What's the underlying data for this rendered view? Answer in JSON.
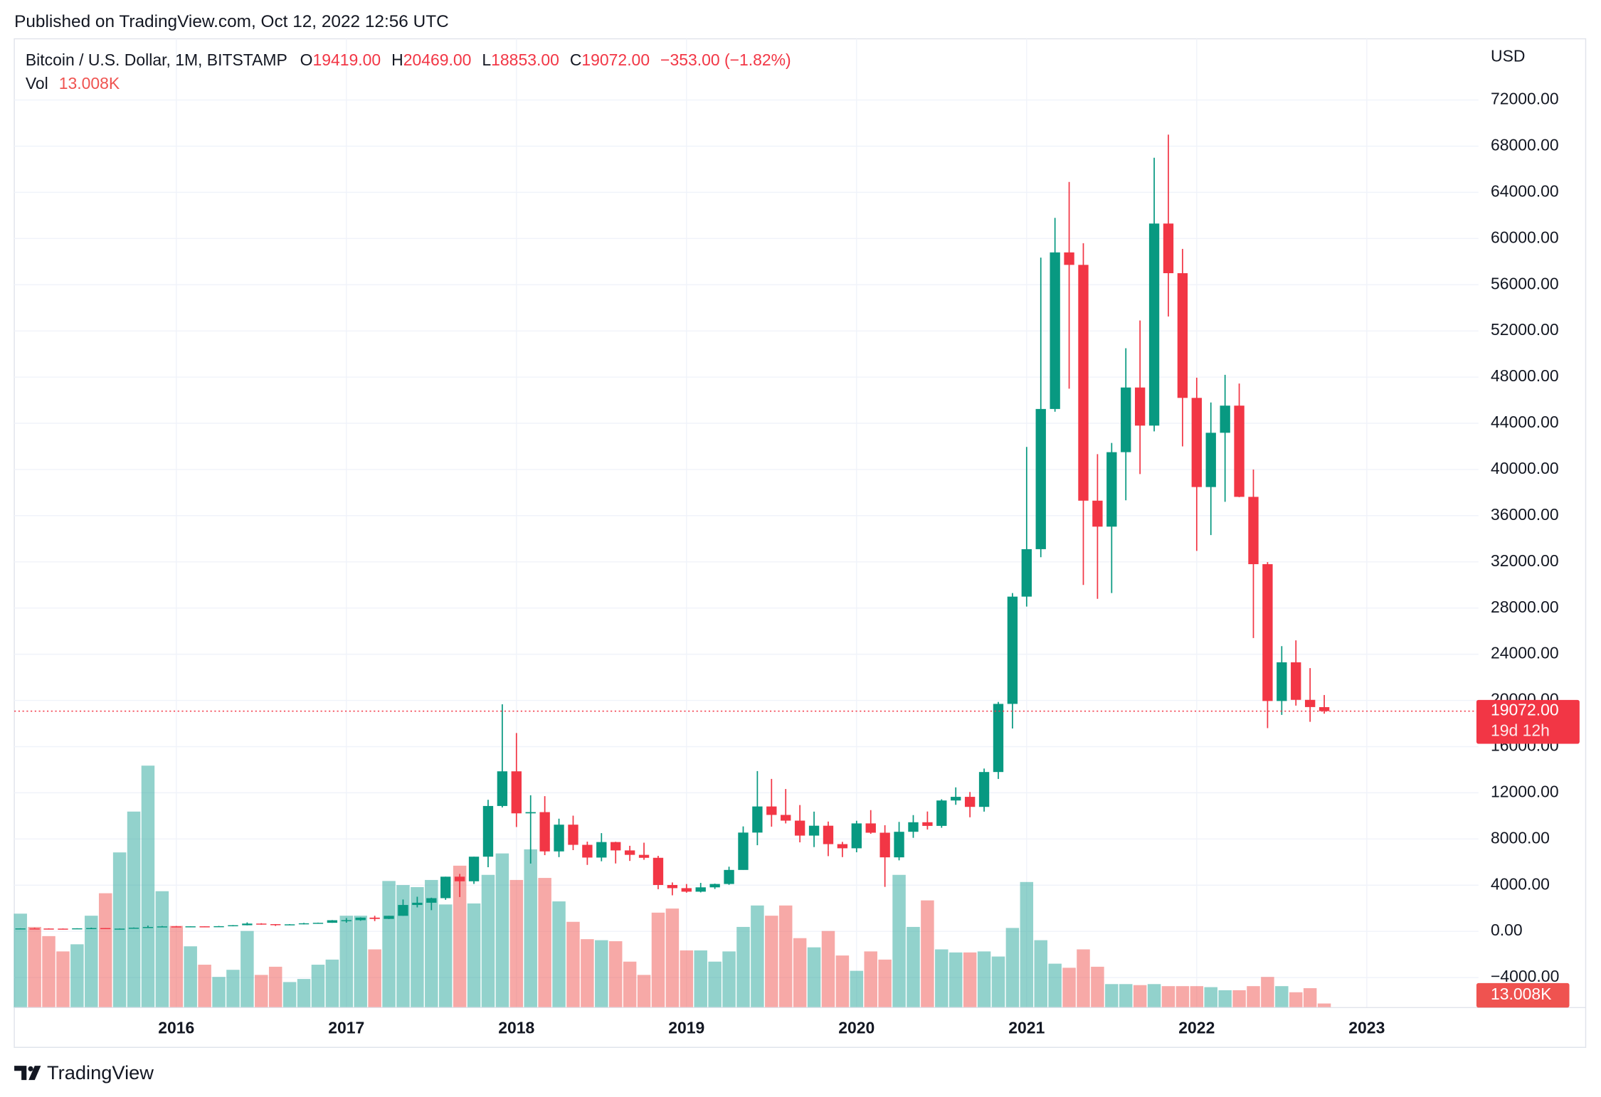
{
  "header": {
    "published": "Published on TradingView.com, Oct 12, 2022 12:56 UTC"
  },
  "footer": {
    "brand": "TradingView"
  },
  "chart_data": {
    "type": "candlestick",
    "title": "Bitcoin / U.S. Dollar, 1M, BITSTAMP",
    "legend": {
      "o_label": "O",
      "o": "19419.00",
      "h_label": "H",
      "h": "20469.00",
      "l_label": "L",
      "l": "18853.00",
      "c_label": "C",
      "c": "19072.00",
      "change": "−353.00 (−1.82%)"
    },
    "volume_label": "Vol",
    "volume_value_label": "13.008K",
    "currency": "USD",
    "last_price": {
      "value": 19072,
      "label": "19072.00",
      "countdown": "19d 12h"
    },
    "up_color": "#089981",
    "down_color": "#f23645",
    "volume_up_color": "#26a69a80",
    "volume_down_color": "#ef535080",
    "grid": true,
    "x": [
      "2015-02",
      "2015-03",
      "2015-04",
      "2015-05",
      "2015-06",
      "2015-07",
      "2015-08",
      "2015-09",
      "2015-10",
      "2015-11",
      "2015-12",
      "2016-01",
      "2016-02",
      "2016-03",
      "2016-04",
      "2016-05",
      "2016-06",
      "2016-07",
      "2016-08",
      "2016-09",
      "2016-10",
      "2016-11",
      "2016-12",
      "2017-01",
      "2017-02",
      "2017-03",
      "2017-04",
      "2017-05",
      "2017-06",
      "2017-07",
      "2017-08",
      "2017-09",
      "2017-10",
      "2017-11",
      "2017-12",
      "2018-01",
      "2018-02",
      "2018-03",
      "2018-04",
      "2018-05",
      "2018-06",
      "2018-07",
      "2018-08",
      "2018-09",
      "2018-10",
      "2018-11",
      "2018-12",
      "2019-01",
      "2019-02",
      "2019-03",
      "2019-04",
      "2019-05",
      "2019-06",
      "2019-07",
      "2019-08",
      "2019-09",
      "2019-10",
      "2019-11",
      "2019-12",
      "2020-01",
      "2020-02",
      "2020-03",
      "2020-04",
      "2020-05",
      "2020-06",
      "2020-07",
      "2020-08",
      "2020-09",
      "2020-10",
      "2020-11",
      "2020-12",
      "2021-01",
      "2021-02",
      "2021-03",
      "2021-04",
      "2021-05",
      "2021-06",
      "2021-07",
      "2021-08",
      "2021-09",
      "2021-10",
      "2021-11",
      "2021-12",
      "2022-01",
      "2022-02",
      "2022-03",
      "2022-04",
      "2022-05",
      "2022-06",
      "2022-07",
      "2022-08",
      "2022-09",
      "2022-10"
    ],
    "open": [
      216,
      254,
      244,
      236,
      230,
      263,
      284,
      230,
      236,
      314,
      377,
      430,
      368,
      437,
      416,
      448,
      531,
      673,
      624,
      575,
      609,
      698,
      742,
      963,
      970,
      1189,
      1079,
      1348,
      2286,
      2480,
      2875,
      4735,
      4338,
      6468,
      10859,
      13860,
      10221,
      10326,
      6926,
      9240,
      7494,
      6391,
      7735,
      7011,
      6626,
      6371,
      4017,
      3742,
      3437,
      3813,
      4103,
      5320,
      8555,
      10817,
      10085,
      9590,
      8293,
      9150,
      7555,
      7194,
      9350,
      8544,
      6410,
      8624,
      9450,
      9135,
      11335,
      11650,
      10780,
      13800,
      19700,
      28990,
      33100,
      45240,
      58800,
      57720,
      37300,
      35050,
      41500,
      47100,
      43800,
      61300,
      57000,
      46200,
      38480,
      43180,
      45530,
      37630,
      31800,
      19950,
      23300,
      20050,
      19419
    ],
    "high": [
      265,
      300,
      261,
      248,
      268,
      320,
      285,
      246,
      334,
      502,
      466,
      462,
      443,
      440,
      469,
      545,
      777,
      704,
      627,
      628,
      735,
      757,
      980,
      1153,
      1211,
      1350,
      1351,
      2760,
      2999,
      2916,
      4736,
      4975,
      6470,
      11395,
      19666,
      17176,
      11789,
      11710,
      9759,
      10020,
      7771,
      8507,
      7760,
      7410,
      7680,
      6540,
      4236,
      4100,
      4196,
      4135,
      5600,
      9090,
      13880,
      13200,
      12330,
      10940,
      10370,
      9510,
      7750,
      9578,
      10500,
      9190,
      9480,
      10070,
      10380,
      11440,
      12470,
      12070,
      14100,
      19870,
      29300,
      41950,
      58350,
      61790,
      64900,
      59600,
      41330,
      42300,
      50500,
      52900,
      67000,
      69000,
      59100,
      47950,
      45800,
      48200,
      47440,
      40000,
      31980,
      24700,
      25200,
      22800,
      20469
    ],
    "low": [
      212,
      235,
      200,
      226,
      219,
      253,
      199,
      225,
      235,
      300,
      350,
      350,
      364,
      403,
      413,
      437,
      520,
      580,
      472,
      568,
      604,
      680,
      740,
      752,
      918,
      890,
      1063,
      1347,
      2076,
      1837,
      2730,
      2972,
      4110,
      5555,
      10730,
      9035,
      5873,
      6600,
      6430,
      7035,
      5755,
      6070,
      5880,
      6100,
      6200,
      3652,
      3122,
      3350,
      3373,
      3672,
      4030,
      5330,
      7460,
      9070,
      9350,
      7710,
      7300,
      6515,
      6430,
      6850,
      8450,
      3850,
      6150,
      8100,
      8820,
      8970,
      10960,
      9880,
      10370,
      13200,
      17570,
      28130,
      32400,
      45000,
      47000,
      30000,
      28800,
      29300,
      37330,
      39600,
      43300,
      53250,
      42000,
      32950,
      34320,
      37200,
      37600,
      25400,
      17600,
      18750,
      19550,
      18150,
      18853
    ],
    "close": [
      254,
      244,
      236,
      230,
      263,
      284,
      230,
      236,
      314,
      377,
      430,
      368,
      437,
      416,
      448,
      531,
      673,
      624,
      575,
      609,
      698,
      742,
      963,
      970,
      1189,
      1079,
      1348,
      2286,
      2480,
      2875,
      4735,
      4338,
      6468,
      10859,
      13860,
      10221,
      10326,
      6926,
      9240,
      7494,
      6391,
      7735,
      7011,
      6626,
      6371,
      4017,
      3742,
      3437,
      3813,
      4103,
      5320,
      8555,
      10817,
      10085,
      9590,
      8293,
      9150,
      7555,
      7194,
      9350,
      8544,
      6410,
      8624,
      9450,
      9135,
      11335,
      11650,
      10780,
      13800,
      19700,
      28990,
      33100,
      45240,
      58800,
      57720,
      37300,
      35050,
      41500,
      47100,
      43800,
      61300,
      57000,
      46200,
      38480,
      43180,
      45530,
      37630,
      31800,
      19950,
      23300,
      20050,
      19425,
      19072
    ],
    "volume": [
      299000,
      256750,
      227500,
      178750,
      201500,
      292500,
      364000,
      494000,
      624000,
      770250,
      370500,
      260000,
      195000,
      136500,
      97500,
      120250,
      243750,
      104000,
      130000,
      81250,
      91000,
      136500,
      152750,
      292500,
      292500,
      185250,
      403000,
      390000,
      383500,
      406250,
      328250,
      451750,
      331500,
      422500,
      490750,
      406250,
      503750,
      412750,
      338000,
      273000,
      217750,
      214500,
      211250,
      146250,
      104000,
      302250,
      315250,
      182000,
      182000,
      146250,
      178750,
      256750,
      325000,
      292500,
      325000,
      221000,
      191750,
      243750,
      165750,
      117000,
      178750,
      152750,
      422500,
      256750,
      341250,
      185250,
      175500,
      175500,
      178750,
      162500,
      253500,
      399750,
      214500,
      139750,
      126750,
      185250,
      130000,
      74750,
      74750,
      71500,
      74750,
      68250,
      68250,
      68250,
      65000,
      55250,
      55250,
      68250,
      97500,
      68250,
      48750,
      61750,
      13008
    ],
    "ylim": [
      -6600,
      77300
    ],
    "yticks": [
      {
        "value": -4000,
        "label": "−4000.00"
      },
      {
        "value": 0,
        "label": "0.00"
      },
      {
        "value": 4000,
        "label": "4000.00"
      },
      {
        "value": 8000,
        "label": "8000.00"
      },
      {
        "value": 12000,
        "label": "12000.00"
      },
      {
        "value": 16000,
        "label": "16000.00"
      },
      {
        "value": 20000,
        "label": "20000.00"
      },
      {
        "value": 24000,
        "label": "24000.00"
      },
      {
        "value": 28000,
        "label": "28000.00"
      },
      {
        "value": 32000,
        "label": "32000.00"
      },
      {
        "value": 36000,
        "label": "36000.00"
      },
      {
        "value": 40000,
        "label": "40000.00"
      },
      {
        "value": 44000,
        "label": "44000.00"
      },
      {
        "value": 48000,
        "label": "48000.00"
      },
      {
        "value": 52000,
        "label": "52000.00"
      },
      {
        "value": 56000,
        "label": "56000.00"
      },
      {
        "value": 60000,
        "label": "60000.00"
      },
      {
        "value": 64000,
        "label": "64000.00"
      },
      {
        "value": 68000,
        "label": "68000.00"
      },
      {
        "value": 72000,
        "label": "72000.00"
      }
    ],
    "xticks": [
      2016,
      2017,
      2018,
      2019,
      2020,
      2021,
      2022,
      2023
    ]
  }
}
